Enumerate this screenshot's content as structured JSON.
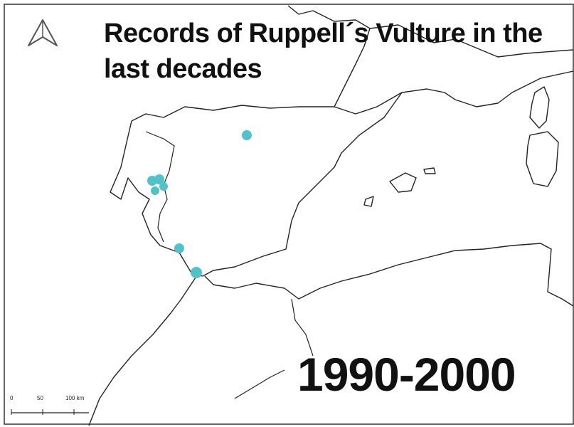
{
  "title": "Records of Ruppell´s Vulture in the last decades",
  "period": "1990-2000",
  "scale_bar": {
    "labels": [
      "0",
      "50",
      "100 km"
    ]
  }
}
